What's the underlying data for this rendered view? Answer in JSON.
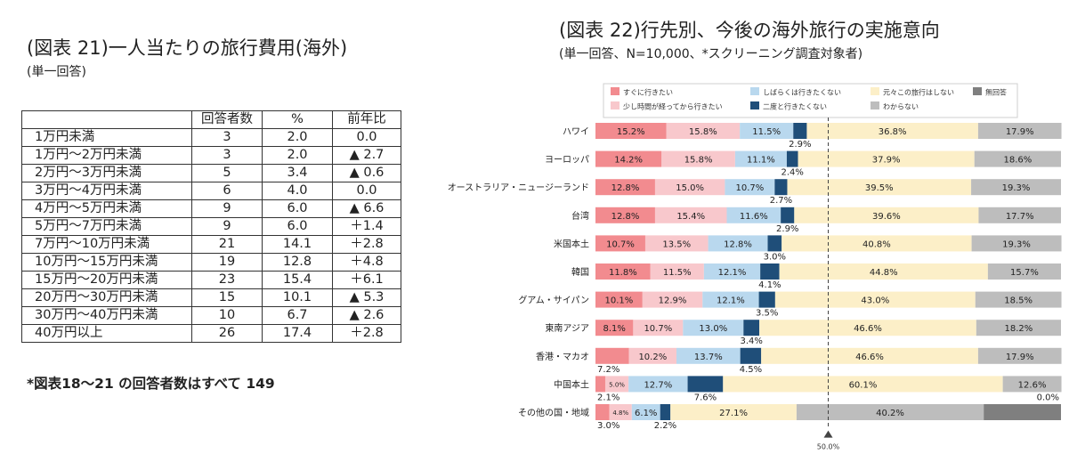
{
  "left": {
    "title": "(図表 21)一人当たりの旅行費用(海外)",
    "subtitle": "(単一回答)",
    "headers": [
      "",
      "回答者数",
      "%",
      "前年比"
    ],
    "rows": [
      {
        "label": "1万円未満",
        "count": "3",
        "pct": "2.0",
        "yoy": "0.0"
      },
      {
        "label": "1万円～2万円未満",
        "count": "3",
        "pct": "2.0",
        "yoy": "▲ 2.7"
      },
      {
        "label": "2万円～3万円未満",
        "count": "5",
        "pct": "3.4",
        "yoy": "▲ 0.6"
      },
      {
        "label": "3万円～4万円未満",
        "count": "6",
        "pct": "4.0",
        "yoy": "0.0"
      },
      {
        "label": "4万円～5万円未満",
        "count": "9",
        "pct": "6.0",
        "yoy": "▲ 6.6"
      },
      {
        "label": "5万円～7万円未満",
        "count": "9",
        "pct": "6.0",
        "yoy": "＋1.4"
      },
      {
        "label": "7万円～10万円未満",
        "count": "21",
        "pct": "14.1",
        "yoy": "＋2.8"
      },
      {
        "label": "10万円～15万円未満",
        "count": "19",
        "pct": "12.8",
        "yoy": "＋4.8"
      },
      {
        "label": "15万円～20万円未満",
        "count": "23",
        "pct": "15.4",
        "yoy": "＋6.1"
      },
      {
        "label": "20万円～30万円未満",
        "count": "15",
        "pct": "10.1",
        "yoy": "▲ 5.3"
      },
      {
        "label": "30万円～40万円未満",
        "count": "10",
        "pct": "6.7",
        "yoy": "▲ 2.6"
      },
      {
        "label": "40万円以上",
        "count": "26",
        "pct": "17.4",
        "yoy": "＋2.8"
      }
    ],
    "footnote": "*図表18～21 の回答者数はすべて 149"
  },
  "right": {
    "title": "(図表 22)行先別、今後の海外旅行の実施意向",
    "subtitle": "(単一回答、N=10,000、*スクリーニング調査対象者)"
  },
  "chart_data": {
    "type": "bar",
    "orientation": "horizontal",
    "stacked": true,
    "title": "(図表 22)行先別、今後の海外旅行の実施意向",
    "categories": [
      "ハワイ",
      "ヨーロッパ",
      "オーストラリア・ニュージーランド",
      "台湾",
      "米国本土",
      "韓国",
      "グアム・サイパン",
      "東南アジア",
      "香港・マカオ",
      "中国本土",
      "その他の国・地域"
    ],
    "series": [
      {
        "name": "すぐに行きたい",
        "color": "#f28b8f",
        "values": [
          15.2,
          14.2,
          12.8,
          12.8,
          10.7,
          11.8,
          10.1,
          8.1,
          7.2,
          2.1,
          3.0
        ]
      },
      {
        "name": "少し時間が経ってから行きたい",
        "color": "#f8c8cc",
        "values": [
          15.8,
          15.8,
          15.0,
          15.4,
          13.5,
          11.5,
          12.9,
          10.7,
          10.2,
          5.0,
          4.8
        ]
      },
      {
        "name": "しばらくは行きたくない",
        "color": "#b9d8ee",
        "values": [
          11.5,
          11.1,
          10.7,
          11.6,
          12.8,
          12.1,
          12.1,
          13.0,
          13.7,
          12.7,
          6.1
        ]
      },
      {
        "name": "二度と行きたくない",
        "color": "#1f4e79",
        "values": [
          2.9,
          2.4,
          2.7,
          2.9,
          3.0,
          4.1,
          3.5,
          3.4,
          4.5,
          7.6,
          2.2
        ]
      },
      {
        "name": "元々この旅行はしない",
        "color": "#fcefc8",
        "values": [
          36.8,
          37.9,
          39.5,
          39.6,
          40.8,
          44.8,
          43.0,
          46.6,
          46.6,
          60.1,
          27.1
        ]
      },
      {
        "name": "わからない",
        "color": "#bdbdbd",
        "values": [
          17.9,
          18.6,
          19.3,
          17.7,
          19.3,
          15.7,
          18.5,
          18.2,
          17.9,
          12.6,
          40.2
        ]
      },
      {
        "name": "無回答",
        "color": "#7f7f7f",
        "values": [
          0.0,
          0.0,
          0.0,
          0.0,
          0.0,
          0.0,
          0.0,
          0.0,
          0.0,
          0.0,
          16.6
        ]
      }
    ],
    "labels": [
      [
        "15.2%",
        "15.8%",
        "11.5%",
        "2.9%",
        "36.8%",
        "17.9%",
        ""
      ],
      [
        "14.2%",
        "15.8%",
        "11.1%",
        "2.4%",
        "37.9%",
        "18.6%",
        ""
      ],
      [
        "12.8%",
        "15.0%",
        "10.7%",
        "2.7%",
        "39.5%",
        "19.3%",
        ""
      ],
      [
        "12.8%",
        "15.4%",
        "11.6%",
        "2.9%",
        "39.6%",
        "17.7%",
        ""
      ],
      [
        "10.7%",
        "13.5%",
        "12.8%",
        "3.0%",
        "40.8%",
        "19.3%",
        ""
      ],
      [
        "11.8%",
        "11.5%",
        "12.1%",
        "4.1%",
        "44.8%",
        "15.7%",
        ""
      ],
      [
        "10.1%",
        "12.9%",
        "12.1%",
        "3.5%",
        "43.0%",
        "18.5%",
        ""
      ],
      [
        "8.1%",
        "10.7%",
        "13.0%",
        "3.4%",
        "46.6%",
        "18.2%",
        ""
      ],
      [
        "7.2%",
        "10.2%",
        "13.7%",
        "4.5%",
        "46.6%",
        "17.9%",
        ""
      ],
      [
        "2.1%",
        "5.0%",
        "12.7%",
        "7.6%",
        "60.1%",
        "12.6%",
        "0.0%"
      ],
      [
        "3.0%",
        "4.8%",
        "6.1%",
        "2.2%",
        "27.1%",
        "40.2%",
        ""
      ]
    ],
    "xlim": [
      0,
      100
    ],
    "reference_line": {
      "value": 50.0,
      "label": "50.0%"
    },
    "legend_position": "top"
  }
}
